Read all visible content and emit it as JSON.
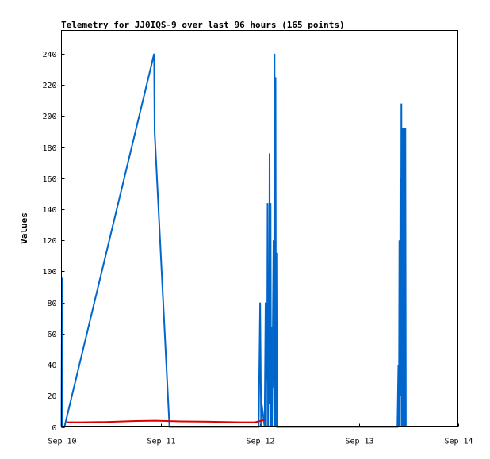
{
  "chart_data": {
    "type": "line",
    "title": "Telemetry for JJ0IQS-9 over last 96 hours (165 points)",
    "ylabel": "Values",
    "xlabel": "",
    "xlim": [
      0,
      4
    ],
    "ylim": [
      0,
      255
    ],
    "x_ticks": [
      {
        "label": "Sep 10",
        "x": 0
      },
      {
        "label": "Sep 11",
        "x": 1
      },
      {
        "label": "Sep 12",
        "x": 2
      },
      {
        "label": "Sep 13",
        "x": 3
      },
      {
        "label": "Sep 14",
        "x": 4
      }
    ],
    "y_ticks": [
      0,
      20,
      40,
      60,
      80,
      100,
      120,
      140,
      160,
      180,
      200,
      220,
      240
    ],
    "grid": false,
    "legend": "none",
    "series": [
      {
        "color": "#0066cc",
        "points": [
          [
            0.0,
            0
          ],
          [
            0.005,
            96
          ],
          [
            0.01,
            0
          ],
          [
            0.03,
            0
          ],
          [
            0.935,
            240
          ],
          [
            0.94,
            190
          ],
          [
            1.09,
            0
          ],
          [
            1.99,
            0
          ],
          [
            2.005,
            80
          ],
          [
            2.015,
            0
          ],
          [
            2.02,
            15
          ],
          [
            2.05,
            0
          ],
          [
            2.06,
            80
          ],
          [
            2.065,
            0
          ],
          [
            2.07,
            80
          ],
          [
            2.075,
            30
          ],
          [
            2.08,
            144
          ],
          [
            2.085,
            0
          ],
          [
            2.09,
            48
          ],
          [
            2.095,
            15
          ],
          [
            2.1,
            176
          ],
          [
            2.105,
            25
          ],
          [
            2.11,
            144
          ],
          [
            2.115,
            0
          ],
          [
            2.12,
            64
          ],
          [
            2.125,
            0
          ],
          [
            2.14,
            120
          ],
          [
            2.145,
            25
          ],
          [
            2.15,
            240
          ],
          [
            2.155,
            0
          ],
          [
            2.16,
            225
          ],
          [
            2.165,
            0
          ],
          [
            2.17,
            112
          ],
          [
            2.175,
            0
          ],
          [
            2.2,
            0
          ],
          [
            3.39,
            0
          ],
          [
            3.4,
            40
          ],
          [
            3.405,
            0
          ],
          [
            3.41,
            120
          ],
          [
            3.415,
            0
          ],
          [
            3.42,
            160
          ],
          [
            3.425,
            20
          ],
          [
            3.43,
            208
          ],
          [
            3.435,
            0
          ],
          [
            3.44,
            192
          ],
          [
            3.445,
            0
          ],
          [
            3.45,
            192
          ],
          [
            3.455,
            0
          ],
          [
            3.46,
            192
          ],
          [
            3.465,
            0
          ],
          [
            3.47,
            192
          ],
          [
            3.475,
            0
          ]
        ]
      },
      {
        "color": "#dd0000",
        "points": [
          [
            0.05,
            3
          ],
          [
            0.2,
            3
          ],
          [
            0.45,
            3.2
          ],
          [
            0.75,
            3.8
          ],
          [
            0.95,
            4
          ],
          [
            1.2,
            3.6
          ],
          [
            1.5,
            3.4
          ],
          [
            1.8,
            3
          ],
          [
            1.95,
            3
          ],
          [
            2.02,
            4
          ],
          [
            2.06,
            5
          ]
        ]
      }
    ]
  }
}
